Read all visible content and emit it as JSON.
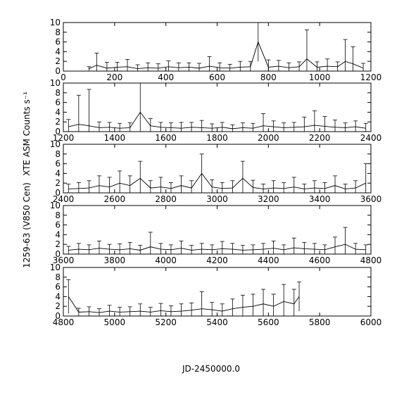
{
  "ylabel": "1259-63 (V850 Cen)",
  "ylabel2": "XTE ASM Counts s⁻¹",
  "xlabel": "JD-2450000.0",
  "chart_data": [
    {
      "type": "errorbar",
      "xlim": [
        0,
        1200
      ],
      "ylim": [
        0,
        10
      ],
      "xticks": [
        0,
        200,
        400,
        600,
        800,
        1000,
        1200
      ],
      "yticks": [
        0,
        2,
        4,
        6,
        8,
        10
      ],
      "x": [
        100,
        130,
        170,
        210,
        250,
        290,
        330,
        370,
        410,
        450,
        490,
        530,
        570,
        610,
        650,
        690,
        730,
        760,
        800,
        840,
        880,
        920,
        950,
        990,
        1030,
        1070,
        1100,
        1130,
        1170
      ],
      "values": [
        0.5,
        1.2,
        0.6,
        0.8,
        0.9,
        0.5,
        0.7,
        0.6,
        0.9,
        0.7,
        0.8,
        0.6,
        1.0,
        0.7,
        0.6,
        0.8,
        0.9,
        6.0,
        0.8,
        1.0,
        0.7,
        0.9,
        2.5,
        0.8,
        1.0,
        0.9,
        2.0,
        1.5,
        0.6
      ],
      "errors": [
        0.4,
        2.5,
        1.2,
        1.0,
        1.5,
        0.8,
        1.0,
        0.9,
        1.2,
        1.0,
        0.9,
        1.0,
        2.0,
        1.0,
        0.8,
        1.2,
        1.1,
        4.0,
        1.5,
        1.2,
        1.0,
        1.0,
        6.0,
        1.1,
        1.5,
        1.0,
        4.5,
        3.5,
        1.0
      ]
    },
    {
      "type": "errorbar",
      "xlim": [
        1200,
        2400
      ],
      "ylim": [
        0,
        10
      ],
      "xticks": [
        1200,
        1400,
        1600,
        1800,
        2000,
        2200,
        2400
      ],
      "yticks": [
        0,
        2,
        4,
        6,
        8,
        10
      ],
      "x": [
        1220,
        1260,
        1300,
        1340,
        1380,
        1420,
        1460,
        1500,
        1540,
        1580,
        1620,
        1660,
        1700,
        1740,
        1780,
        1820,
        1860,
        1900,
        1940,
        1980,
        2020,
        2060,
        2100,
        2140,
        2180,
        2220,
        2260,
        2300,
        2340,
        2380
      ],
      "values": [
        1.0,
        1.5,
        1.2,
        0.8,
        0.9,
        0.7,
        0.8,
        4.0,
        1.2,
        0.9,
        0.8,
        0.7,
        0.9,
        0.8,
        0.7,
        0.9,
        0.6,
        0.8,
        0.7,
        1.2,
        1.0,
        0.8,
        0.9,
        1.0,
        1.3,
        1.1,
        0.9,
        0.8,
        1.0,
        0.7
      ],
      "errors": [
        1.5,
        6.0,
        7.5,
        1.2,
        1.0,
        1.0,
        1.0,
        6.0,
        1.5,
        1.0,
        1.0,
        1.2,
        1.0,
        1.5,
        0.9,
        1.0,
        0.8,
        1.0,
        1.0,
        2.5,
        1.2,
        1.0,
        1.0,
        2.0,
        3.0,
        2.0,
        1.5,
        1.0,
        1.2,
        1.0
      ]
    },
    {
      "type": "errorbar",
      "xlim": [
        2400,
        3600
      ],
      "ylim": [
        0,
        10
      ],
      "xticks": [
        2400,
        2600,
        2800,
        3000,
        3200,
        3400,
        3600
      ],
      "yticks": [
        0,
        2,
        4,
        6,
        8,
        10
      ],
      "x": [
        2420,
        2460,
        2500,
        2540,
        2580,
        2620,
        2660,
        2700,
        2740,
        2780,
        2820,
        2860,
        2900,
        2940,
        2980,
        3020,
        3060,
        3100,
        3140,
        3180,
        3220,
        3260,
        3300,
        3340,
        3380,
        3420,
        3460,
        3500,
        3540,
        3580
      ],
      "values": [
        0.8,
        0.9,
        1.0,
        1.5,
        1.2,
        2.0,
        1.5,
        3.0,
        1.0,
        1.2,
        0.9,
        1.5,
        1.0,
        4.0,
        1.2,
        0.9,
        1.0,
        3.0,
        1.1,
        0.8,
        1.0,
        0.9,
        1.2,
        0.8,
        1.0,
        0.9,
        1.5,
        0.8,
        1.0,
        2.0
      ],
      "errors": [
        1.0,
        1.2,
        1.5,
        2.0,
        2.0,
        2.5,
        2.0,
        3.5,
        1.5,
        2.0,
        1.2,
        2.0,
        1.5,
        4.0,
        1.5,
        1.2,
        1.5,
        3.5,
        1.5,
        1.0,
        1.5,
        1.2,
        2.0,
        1.0,
        1.5,
        1.2,
        2.0,
        1.0,
        1.5,
        4.0
      ]
    },
    {
      "type": "errorbar",
      "xlim": [
        3600,
        4800
      ],
      "ylim": [
        0,
        10
      ],
      "xticks": [
        3600,
        3800,
        4000,
        4200,
        4400,
        4600,
        4800
      ],
      "yticks": [
        0,
        2,
        4,
        6,
        8,
        10
      ],
      "x": [
        3620,
        3660,
        3700,
        3740,
        3780,
        3820,
        3860,
        3900,
        3940,
        3980,
        4020,
        4060,
        4100,
        4140,
        4180,
        4220,
        4260,
        4300,
        4340,
        4380,
        4420,
        4460,
        4500,
        4540,
        4580,
        4620,
        4660,
        4700,
        4740,
        4780
      ],
      "values": [
        0.8,
        1.0,
        0.9,
        1.2,
        1.0,
        0.9,
        1.1,
        0.8,
        1.5,
        1.0,
        0.9,
        1.2,
        0.8,
        1.0,
        0.9,
        1.1,
        1.0,
        0.8,
        0.9,
        1.0,
        1.2,
        0.9,
        1.3,
        1.1,
        1.0,
        0.9,
        1.5,
        2.0,
        1.0,
        0.9
      ],
      "errors": [
        0.8,
        1.2,
        1.0,
        1.5,
        1.0,
        1.2,
        1.3,
        1.0,
        3.0,
        1.2,
        1.0,
        1.5,
        1.0,
        1.2,
        1.0,
        1.5,
        1.2,
        1.0,
        1.0,
        1.2,
        1.5,
        1.0,
        2.0,
        1.3,
        1.2,
        1.0,
        2.0,
        3.5,
        1.2,
        1.0
      ]
    },
    {
      "type": "errorbar",
      "xlim": [
        4800,
        6000
      ],
      "ylim": [
        0,
        10
      ],
      "xticks": [
        4800,
        5000,
        5200,
        5400,
        5600,
        5800,
        6000
      ],
      "yticks": [
        0,
        2,
        4,
        6,
        8,
        10
      ],
      "x": [
        4820,
        4860,
        4900,
        4940,
        4980,
        5020,
        5060,
        5100,
        5140,
        5180,
        5220,
        5260,
        5300,
        5340,
        5380,
        5420,
        5460,
        5500,
        5540,
        5580,
        5620,
        5660,
        5700,
        5720
      ],
      "values": [
        4.0,
        0.8,
        0.9,
        0.7,
        1.0,
        0.8,
        0.9,
        1.0,
        0.8,
        1.1,
        0.9,
        1.0,
        1.2,
        1.5,
        1.3,
        1.0,
        1.5,
        1.8,
        2.0,
        2.5,
        2.0,
        3.0,
        2.5,
        4.0
      ],
      "errors": [
        3.5,
        0.8,
        1.0,
        0.8,
        1.2,
        1.0,
        1.0,
        1.5,
        1.0,
        1.5,
        1.2,
        1.5,
        1.5,
        3.5,
        1.5,
        1.5,
        2.0,
        2.5,
        2.5,
        3.0,
        2.5,
        3.5,
        3.0,
        3.0
      ]
    }
  ]
}
